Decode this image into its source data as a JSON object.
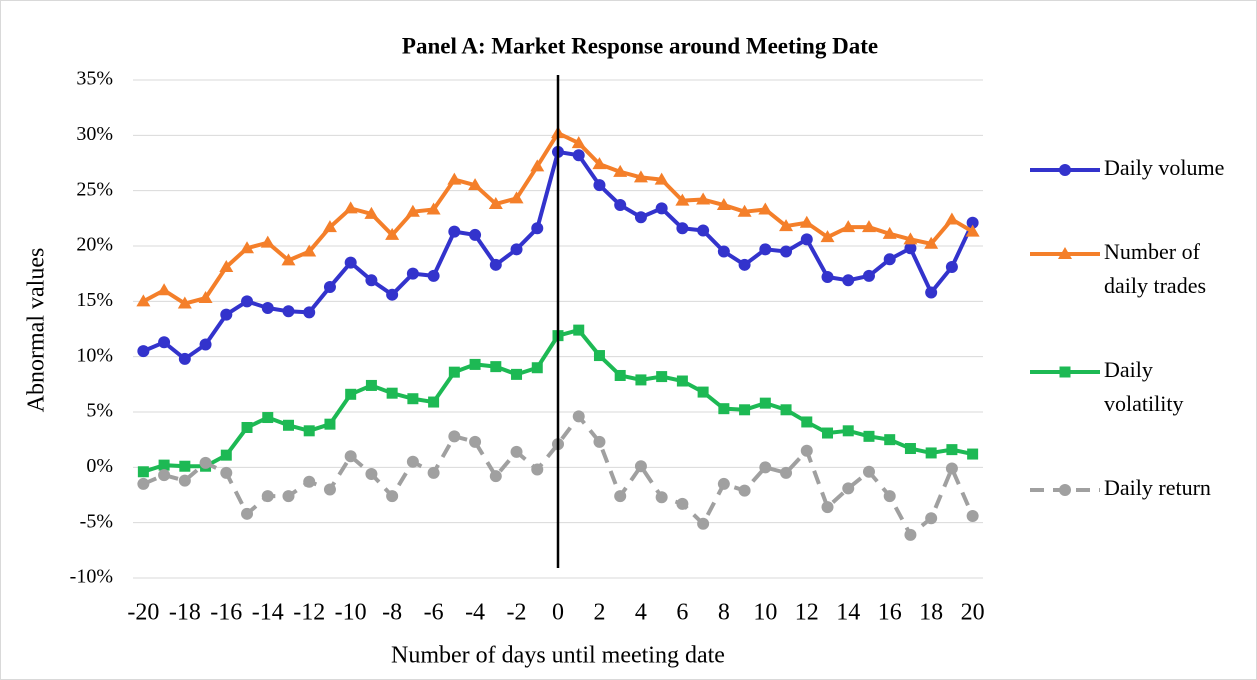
{
  "chart_data": {
    "type": "line",
    "title": "Panel A: Market Response around Meeting Date",
    "xlabel": "Number of  days until meeting date",
    "ylabel": "Abnormal values",
    "x": [
      -20,
      -19,
      -18,
      -17,
      -16,
      -15,
      -14,
      -13,
      -12,
      -11,
      -10,
      -9,
      -8,
      -7,
      -6,
      -5,
      -4,
      -3,
      -2,
      -1,
      0,
      1,
      2,
      3,
      4,
      5,
      6,
      7,
      8,
      9,
      10,
      11,
      12,
      13,
      14,
      15,
      16,
      17,
      18,
      19,
      20
    ],
    "xlim": [
      -20.5,
      20.5
    ],
    "xticks": [
      -20,
      -18,
      -16,
      -14,
      -12,
      -10,
      -8,
      -6,
      -4,
      -2,
      0,
      2,
      4,
      6,
      8,
      10,
      12,
      14,
      16,
      18,
      20
    ],
    "ylim": [
      -10,
      35
    ],
    "yticks": [
      {
        "value": -10,
        "label": "-10%"
      },
      {
        "value": -5,
        "label": "-5%"
      },
      {
        "value": 0,
        "label": "0%"
      },
      {
        "value": 5,
        "label": "5%"
      },
      {
        "value": 10,
        "label": "10%"
      },
      {
        "value": 15,
        "label": "15%"
      },
      {
        "value": 20,
        "label": "20%"
      },
      {
        "value": 25,
        "label": "25%"
      },
      {
        "value": 30,
        "label": "30%"
      },
      {
        "value": 35,
        "label": "35%"
      }
    ],
    "grid": true,
    "vline": 0,
    "legend": "right",
    "series": [
      {
        "name": "Daily volume",
        "color": "#3333cc",
        "marker": "circle",
        "dashed": false,
        "values": [
          10.5,
          11.3,
          9.8,
          11.1,
          13.8,
          15.0,
          14.4,
          14.1,
          14.0,
          16.3,
          18.5,
          16.9,
          15.6,
          17.5,
          17.3,
          21.3,
          21.0,
          18.3,
          19.7,
          21.6,
          28.5,
          28.2,
          25.5,
          23.7,
          22.6,
          23.4,
          21.6,
          21.4,
          19.5,
          18.3,
          19.7,
          19.5,
          20.6,
          17.2,
          16.9,
          17.3,
          18.8,
          19.8,
          15.8,
          18.1,
          22.1
        ]
      },
      {
        "name": "Number of daily trades",
        "color": "#f47f2a",
        "marker": "triangle",
        "dashed": false,
        "values": [
          15.0,
          16.0,
          14.8,
          15.3,
          18.1,
          19.8,
          20.3,
          18.7,
          19.5,
          21.7,
          23.4,
          22.9,
          21.0,
          23.1,
          23.3,
          26.0,
          25.5,
          23.8,
          24.3,
          27.2,
          30.2,
          29.3,
          27.4,
          26.7,
          26.2,
          26.0,
          24.1,
          24.2,
          23.7,
          23.1,
          23.3,
          21.8,
          22.1,
          20.8,
          21.7,
          21.7,
          21.1,
          20.6,
          20.2,
          22.4,
          21.3
        ]
      },
      {
        "name": "Daily volatility",
        "color": "#1db954",
        "marker": "square",
        "dashed": false,
        "values": [
          -0.4,
          0.2,
          0.1,
          0.1,
          1.1,
          3.6,
          4.5,
          3.8,
          3.3,
          3.9,
          6.6,
          7.4,
          6.7,
          6.2,
          5.9,
          8.6,
          9.3,
          9.1,
          8.4,
          9.0,
          11.9,
          12.4,
          10.1,
          8.3,
          7.9,
          8.2,
          7.8,
          6.8,
          5.3,
          5.2,
          5.8,
          5.2,
          4.1,
          3.1,
          3.3,
          2.8,
          2.5,
          1.7,
          1.3,
          1.6,
          1.2
        ]
      },
      {
        "name": "Daily return",
        "color": "#a0a0a0",
        "marker": "circle",
        "dashed": true,
        "values": [
          -1.5,
          -0.7,
          -1.2,
          0.4,
          -0.5,
          -4.2,
          -2.6,
          -2.6,
          -1.3,
          -2.0,
          1.0,
          -0.6,
          -2.6,
          0.5,
          -0.5,
          2.8,
          2.3,
          -0.8,
          1.4,
          -0.2,
          2.1,
          4.6,
          2.3,
          -2.6,
          0.1,
          -2.7,
          -3.3,
          -5.1,
          -1.5,
          -2.1,
          0.0,
          -0.5,
          1.5,
          -3.6,
          -1.9,
          -0.4,
          -2.6,
          -6.1,
          -4.6,
          -0.1,
          -4.4
        ]
      }
    ]
  }
}
